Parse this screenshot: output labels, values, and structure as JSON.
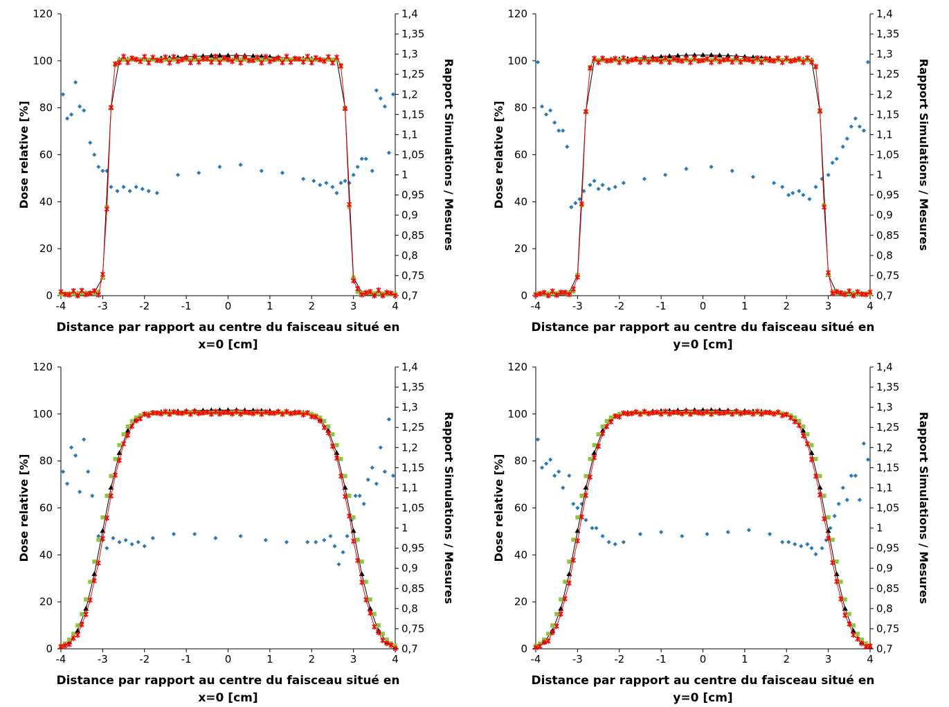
{
  "chart_data": [
    {
      "type": "scatter",
      "xlabel_line1": "Distance par rapport au centre du faisceau situé en",
      "xlabel_line2": "x=0 [cm]",
      "ylabel": "Dose relative [%]",
      "y2label": "Rapport Simulations / Mesures",
      "xlim": [
        -4,
        4
      ],
      "ylim": [
        0,
        120
      ],
      "y2lim": [
        0.7,
        1.4
      ],
      "x_ticks": [
        "-4",
        "-3",
        "-2",
        "-1",
        "0",
        "1",
        "2",
        "3",
        "4"
      ],
      "y_ticks": [
        "0",
        "20",
        "40",
        "60",
        "80",
        "100",
        "120"
      ],
      "y2_ticks": [
        "0,7",
        "0,75",
        "0,8",
        "0,85",
        "0,9",
        "0,95",
        "1",
        "1,05",
        "1,1",
        "1,15",
        "1,2",
        "1,25",
        "1,3",
        "1,35",
        "1,4"
      ],
      "profile": {
        "half_width": 2.87,
        "sigma": 0.085,
        "tail": 1.5,
        "top": 100.5
      },
      "series": [
        {
          "marker": "triangle",
          "color": "#000000",
          "line": true,
          "bump": 1.8,
          "step": 0.2
        },
        {
          "marker": "square",
          "color": "#8cc63f",
          "line": false,
          "bump": 0,
          "step": 0.1
        },
        {
          "marker": "x",
          "color": "#ff0000",
          "line": true,
          "bump": 0,
          "step": 0.1,
          "noise": 1.4
        }
      ],
      "ratio": {
        "color": "#2a7ab8",
        "points": [
          [
            -3.95,
            1.2
          ],
          [
            -3.85,
            1.14
          ],
          [
            -3.75,
            1.15
          ],
          [
            -3.65,
            1.23
          ],
          [
            -3.55,
            1.17
          ],
          [
            -3.45,
            1.16
          ],
          [
            -3.3,
            1.08
          ],
          [
            -3.2,
            1.05
          ],
          [
            -3.1,
            1.02
          ],
          [
            -3.0,
            1.01
          ],
          [
            -2.9,
            1.01
          ],
          [
            -2.8,
            0.97
          ],
          [
            -2.65,
            0.96
          ],
          [
            -2.5,
            0.97
          ],
          [
            -2.35,
            0.96
          ],
          [
            -2.2,
            0.97
          ],
          [
            -2.05,
            0.965
          ],
          [
            -1.9,
            0.96
          ],
          [
            -1.7,
            0.955
          ],
          [
            -1.2,
            1.0
          ],
          [
            -0.7,
            1.005
          ],
          [
            -0.2,
            1.02
          ],
          [
            0.3,
            1.025
          ],
          [
            0.8,
            1.01
          ],
          [
            1.3,
            1.005
          ],
          [
            1.8,
            0.99
          ],
          [
            2.05,
            0.985
          ],
          [
            2.2,
            0.975
          ],
          [
            2.35,
            0.98
          ],
          [
            2.5,
            0.97
          ],
          [
            2.6,
            0.955
          ],
          [
            2.7,
            0.98
          ],
          [
            2.8,
            0.985
          ],
          [
            2.9,
            0.98
          ],
          [
            3.0,
            1.0
          ],
          [
            3.1,
            1.02
          ],
          [
            3.2,
            1.04
          ],
          [
            3.3,
            1.04
          ],
          [
            3.45,
            1.01
          ],
          [
            3.55,
            1.21
          ],
          [
            3.65,
            1.19
          ],
          [
            3.75,
            1.17
          ],
          [
            3.85,
            1.055
          ],
          [
            3.95,
            1.2
          ]
        ]
      }
    },
    {
      "type": "scatter",
      "xlabel_line1": "Distance par rapport au centre du faisceau situé en",
      "xlabel_line2": "y=0 [cm]",
      "ylabel": "Dose relative [%]",
      "y2label": "Rapport Simulations / Mesures",
      "xlim": [
        -4,
        4
      ],
      "ylim": [
        0,
        120
      ],
      "y2lim": [
        0.7,
        1.4
      ],
      "x_ticks": [
        "-4",
        "-3",
        "-2",
        "-1",
        "0",
        "1",
        "2",
        "3",
        "4"
      ],
      "y_ticks": [
        "0",
        "20",
        "40",
        "60",
        "80",
        "100",
        "120"
      ],
      "y2_ticks": [
        "0,7",
        "0,75",
        "0,8",
        "0,85",
        "0,9",
        "0,95",
        "1",
        "1,05",
        "1,1",
        "1,15",
        "1,2",
        "1,25",
        "1,3",
        "1,35",
        "1,4"
      ],
      "profile": {
        "half_width": 2.87,
        "sigma": 0.09,
        "tail": 1.5,
        "top": 100.3
      },
      "series": [
        {
          "marker": "triangle",
          "color": "#000000",
          "line": true,
          "bump": 2.2,
          "step": 0.2
        },
        {
          "marker": "square",
          "color": "#8cc63f",
          "line": false,
          "bump": 0,
          "step": 0.1
        },
        {
          "marker": "x",
          "color": "#ff0000",
          "line": true,
          "bump": 0,
          "step": 0.1,
          "noise": 1.0
        }
      ],
      "ratio": {
        "color": "#2a7ab8",
        "points": [
          [
            -3.95,
            1.28
          ],
          [
            -3.85,
            1.17
          ],
          [
            -3.75,
            1.15
          ],
          [
            -3.65,
            1.16
          ],
          [
            -3.55,
            1.13
          ],
          [
            -3.45,
            1.11
          ],
          [
            -3.35,
            1.11
          ],
          [
            -3.25,
            1.07
          ],
          [
            -3.15,
            0.92
          ],
          [
            -3.05,
            0.93
          ],
          [
            -2.95,
            0.94
          ],
          [
            -2.85,
            0.96
          ],
          [
            -2.7,
            0.975
          ],
          [
            -2.6,
            0.985
          ],
          [
            -2.5,
            0.965
          ],
          [
            -2.4,
            0.975
          ],
          [
            -2.25,
            0.965
          ],
          [
            -2.1,
            0.97
          ],
          [
            -1.9,
            0.98
          ],
          [
            -1.4,
            0.99
          ],
          [
            -0.9,
            1.0
          ],
          [
            -0.4,
            1.015
          ],
          [
            0.2,
            1.02
          ],
          [
            0.7,
            1.01
          ],
          [
            1.2,
            0.995
          ],
          [
            1.7,
            0.98
          ],
          [
            1.9,
            0.97
          ],
          [
            2.05,
            0.95
          ],
          [
            2.15,
            0.955
          ],
          [
            2.3,
            0.96
          ],
          [
            2.4,
            0.95
          ],
          [
            2.55,
            0.94
          ],
          [
            2.7,
            0.97
          ],
          [
            2.85,
            0.99
          ],
          [
            3.0,
            1.0
          ],
          [
            3.1,
            1.03
          ],
          [
            3.2,
            1.04
          ],
          [
            3.35,
            1.07
          ],
          [
            3.45,
            1.09
          ],
          [
            3.55,
            1.12
          ],
          [
            3.65,
            1.14
          ],
          [
            3.75,
            1.12
          ],
          [
            3.85,
            1.11
          ],
          [
            3.95,
            1.28
          ]
        ]
      }
    },
    {
      "type": "scatter",
      "xlabel_line1": "Distance par rapport au centre du faisceau situé en",
      "xlabel_line2": "x=0 [cm]",
      "ylabel": "Dose relative [%]",
      "y2label": "Rapport Simulations / Mesures",
      "xlim": [
        -4,
        4
      ],
      "ylim": [
        0,
        120
      ],
      "y2lim": [
        0.7,
        1.4
      ],
      "x_ticks": [
        "-4",
        "-3",
        "-2",
        "-1",
        "0",
        "1",
        "2",
        "3",
        "4"
      ],
      "y_ticks": [
        "0",
        "20",
        "40",
        "60",
        "80",
        "100",
        "120"
      ],
      "y2_ticks": [
        "0,7",
        "0,75",
        "0,8",
        "0,85",
        "0,9",
        "0,95",
        "1",
        "1,05",
        "1,1",
        "1,15",
        "1,2",
        "1,25",
        "1,3",
        "1,35",
        "1,4"
      ],
      "profile": {
        "half_width": 3.0,
        "sigma": 0.42,
        "tail": 0,
        "top": 100.5
      },
      "series": [
        {
          "marker": "triangle",
          "color": "#000000",
          "line": true,
          "bump": 1.2,
          "step": 0.2
        },
        {
          "marker": "square",
          "color": "#8cc63f",
          "line": false,
          "bump": 0,
          "step": 0.1,
          "widen": 0.06
        },
        {
          "marker": "x",
          "color": "#ff0000",
          "line": true,
          "bump": 0,
          "step": 0.1,
          "noise": 0.6,
          "narrow": 0.04
        }
      ],
      "ratio": {
        "color": "#2a7ab8",
        "points": [
          [
            -3.95,
            1.14
          ],
          [
            -3.85,
            1.11
          ],
          [
            -3.75,
            1.2
          ],
          [
            -3.65,
            1.18
          ],
          [
            -3.55,
            1.09
          ],
          [
            -3.45,
            1.22
          ],
          [
            -3.35,
            1.14
          ],
          [
            -3.25,
            1.08
          ],
          [
            -3.1,
            0.98
          ],
          [
            -3.0,
            0.97
          ],
          [
            -2.9,
            0.95
          ],
          [
            -2.75,
            0.975
          ],
          [
            -2.6,
            0.965
          ],
          [
            -2.45,
            0.97
          ],
          [
            -2.3,
            0.96
          ],
          [
            -2.15,
            0.965
          ],
          [
            -2.0,
            0.955
          ],
          [
            -1.8,
            0.975
          ],
          [
            -1.3,
            0.985
          ],
          [
            -0.8,
            0.985
          ],
          [
            -0.3,
            0.975
          ],
          [
            0.3,
            0.98
          ],
          [
            0.9,
            0.97
          ],
          [
            1.4,
            0.965
          ],
          [
            1.9,
            0.965
          ],
          [
            2.1,
            0.965
          ],
          [
            2.3,
            0.97
          ],
          [
            2.45,
            0.98
          ],
          [
            2.55,
            0.955
          ],
          [
            2.65,
            0.91
          ],
          [
            2.75,
            0.94
          ],
          [
            2.85,
            0.98
          ],
          [
            2.95,
            1.02
          ],
          [
            3.05,
            1.08
          ],
          [
            3.15,
            1.08
          ],
          [
            3.25,
            1.06
          ],
          [
            3.35,
            1.12
          ],
          [
            3.45,
            1.15
          ],
          [
            3.55,
            1.11
          ],
          [
            3.65,
            1.2
          ],
          [
            3.75,
            1.14
          ],
          [
            3.85,
            1.27
          ],
          [
            3.95,
            1.13
          ]
        ]
      }
    },
    {
      "type": "scatter",
      "xlabel_line1": "Distance par rapport au centre du faisceau situé en",
      "xlabel_line2": "y=0 [cm]",
      "ylabel": "Dose relative [%]",
      "y2label": "Rapport Simulations / Mesures",
      "xlim": [
        -4,
        4
      ],
      "ylim": [
        0,
        120
      ],
      "y2lim": [
        0.7,
        1.4
      ],
      "x_ticks": [
        "-4",
        "-3",
        "-2",
        "-1",
        "0",
        "1",
        "2",
        "3",
        "4"
      ],
      "y_ticks": [
        "0",
        "20",
        "40",
        "60",
        "80",
        "100",
        "120"
      ],
      "y2_ticks": [
        "0,7",
        "0,75",
        "0,8",
        "0,85",
        "0,9",
        "0,95",
        "1",
        "1,05",
        "1,1",
        "1,15",
        "1,2",
        "1,25",
        "1,3",
        "1,35",
        "1,4"
      ],
      "profile": {
        "half_width": 3.0,
        "sigma": 0.42,
        "tail": 0,
        "top": 100.5
      },
      "series": [
        {
          "marker": "triangle",
          "color": "#000000",
          "line": true,
          "bump": 1.2,
          "step": 0.2
        },
        {
          "marker": "square",
          "color": "#8cc63f",
          "line": false,
          "bump": 0,
          "step": 0.1,
          "widen": 0.06
        },
        {
          "marker": "x",
          "color": "#ff0000",
          "line": true,
          "bump": 0,
          "step": 0.1,
          "noise": 0.6,
          "narrow": 0.04
        }
      ],
      "ratio": {
        "color": "#2a7ab8",
        "points": [
          [
            -3.95,
            1.22
          ],
          [
            -3.85,
            1.15
          ],
          [
            -3.75,
            1.16
          ],
          [
            -3.65,
            1.17
          ],
          [
            -3.55,
            1.13
          ],
          [
            -3.45,
            1.14
          ],
          [
            -3.35,
            1.1
          ],
          [
            -3.2,
            1.13
          ],
          [
            -3.1,
            1.06
          ],
          [
            -3.0,
            1.05
          ],
          [
            -2.9,
            1.06
          ],
          [
            -2.8,
            1.02
          ],
          [
            -2.65,
            1.0
          ],
          [
            -2.55,
            1.0
          ],
          [
            -2.4,
            0.98
          ],
          [
            -2.25,
            0.965
          ],
          [
            -2.1,
            0.96
          ],
          [
            -1.9,
            0.965
          ],
          [
            -1.5,
            0.985
          ],
          [
            -1.0,
            0.99
          ],
          [
            -0.5,
            0.98
          ],
          [
            0.1,
            0.985
          ],
          [
            0.6,
            0.99
          ],
          [
            1.1,
            0.995
          ],
          [
            1.6,
            0.985
          ],
          [
            1.9,
            0.965
          ],
          [
            2.05,
            0.965
          ],
          [
            2.2,
            0.96
          ],
          [
            2.35,
            0.955
          ],
          [
            2.5,
            0.96
          ],
          [
            2.6,
            0.95
          ],
          [
            2.7,
            0.935
          ],
          [
            2.85,
            0.95
          ],
          [
            2.95,
            0.97
          ],
          [
            3.05,
            1.0
          ],
          [
            3.15,
            1.03
          ],
          [
            3.25,
            1.06
          ],
          [
            3.35,
            1.1
          ],
          [
            3.45,
            1.07
          ],
          [
            3.55,
            1.13
          ],
          [
            3.65,
            1.13
          ],
          [
            3.75,
            1.07
          ],
          [
            3.85,
            1.21
          ],
          [
            3.95,
            1.17
          ]
        ]
      }
    }
  ]
}
